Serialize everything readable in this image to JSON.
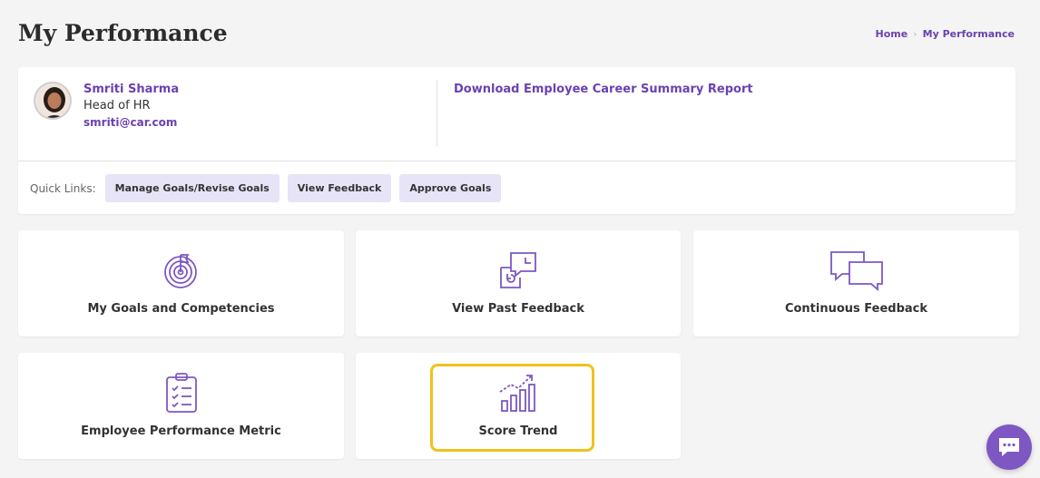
{
  "page": {
    "title": "My Performance"
  },
  "breadcrumb": {
    "home": "Home",
    "current": "My Performance"
  },
  "profile": {
    "name": "Smriti Sharma",
    "role": "Head of HR",
    "email": "smriti@car.com",
    "download_label": "Download Employee Career Summary Report"
  },
  "quick_links": {
    "label": "Quick Links:",
    "items": [
      "Manage Goals/Revise Goals",
      "View Feedback",
      "Approve Goals"
    ]
  },
  "tiles": [
    {
      "label": "My Goals and Competencies",
      "icon": "target-icon"
    },
    {
      "label": "View Past Feedback",
      "icon": "feedback-history-icon"
    },
    {
      "label": "Continuous Feedback",
      "icon": "chat-bubbles-icon"
    },
    {
      "label": "Employee Performance Metric",
      "icon": "clipboard-checklist-icon"
    },
    {
      "label": "Score Trend",
      "icon": "bar-chart-trend-icon"
    }
  ],
  "colors": {
    "accent": "#6a42b0",
    "highlight": "#f0c21c",
    "chip": "#e7e4f7",
    "fab": "#7e57c2"
  }
}
